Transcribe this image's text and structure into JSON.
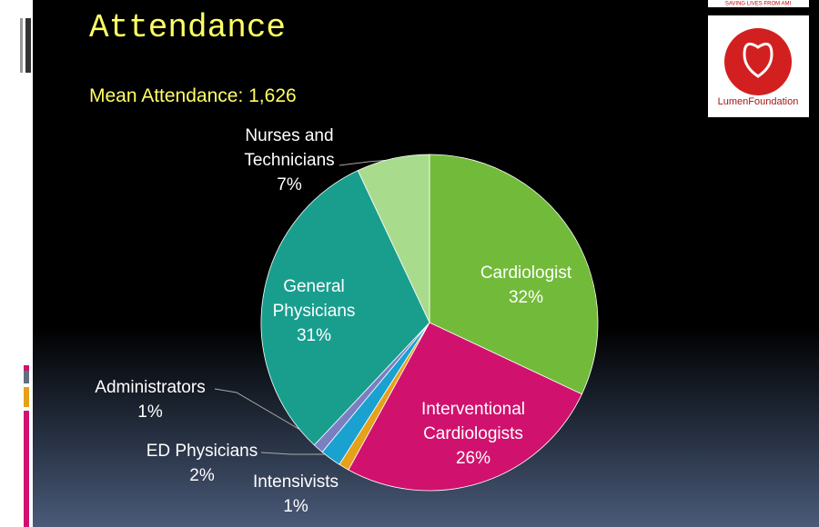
{
  "title": "Attendance",
  "subtitle": "Mean Attendance: 1,626",
  "logo": {
    "tagline": "SAVING LIVES FROM AMI",
    "name": "LumenFoundation"
  },
  "chart_data": {
    "type": "pie",
    "categories": [
      "Cardiologist",
      "Interventional Cardiologists",
      "Intensivists",
      "ED Physicians",
      "Administrators",
      "General Physicians",
      "Nurses and Technicians"
    ],
    "values": [
      32,
      26,
      1,
      2,
      1,
      31,
      7
    ],
    "value_labels": [
      "32%",
      "26%",
      "1%",
      "2%",
      "1%",
      "31%",
      "7%"
    ],
    "colors": [
      "#72bb3a",
      "#d0126e",
      "#e6a11a",
      "#1aa1d0",
      "#7a7fc4",
      "#199e8e",
      "#a8dc8c"
    ]
  }
}
